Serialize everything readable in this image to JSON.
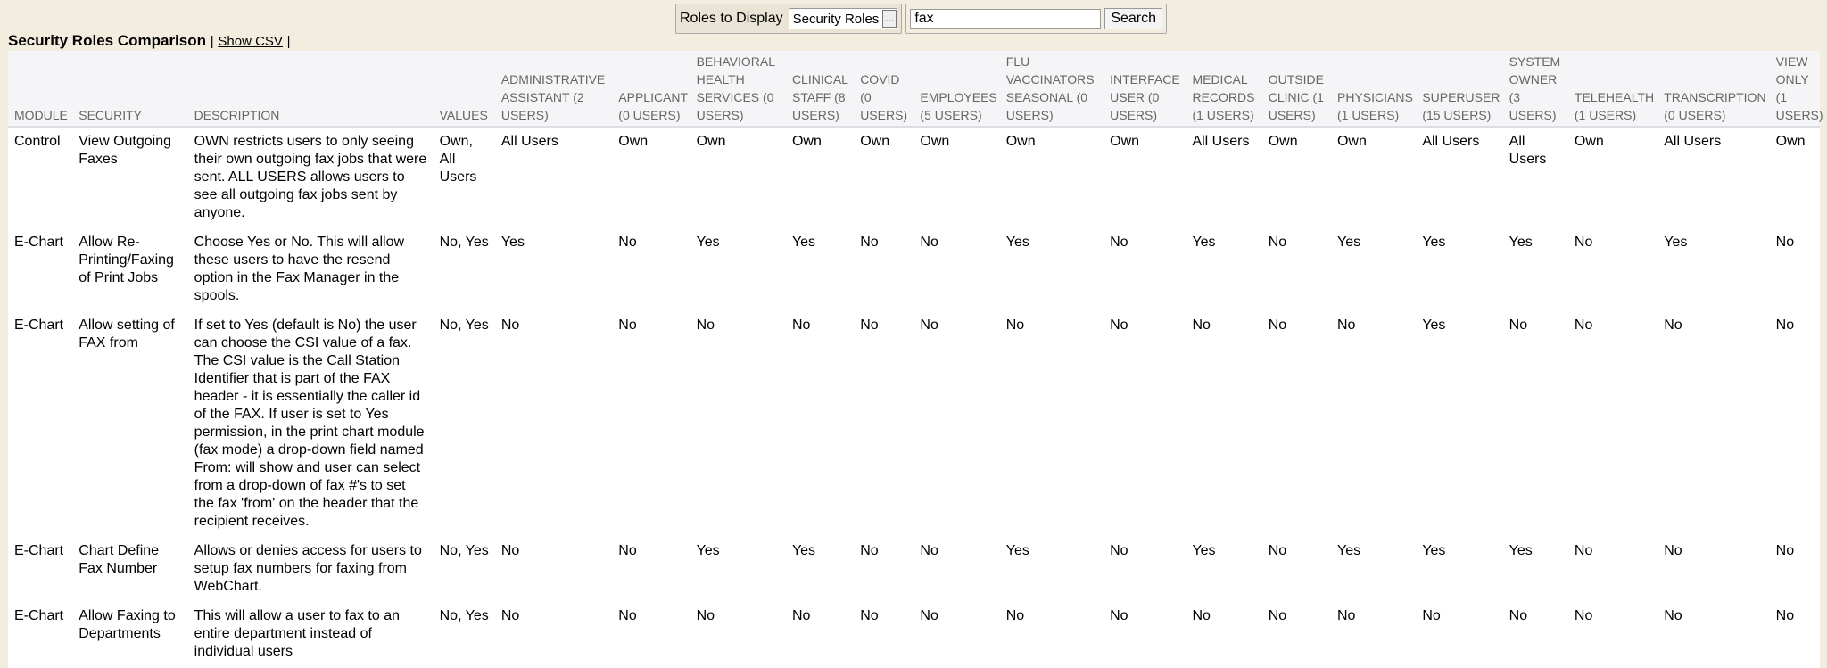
{
  "toolbar": {
    "roles_label": "Roles to Display",
    "roles_value": "Security Roles",
    "roles_more": "...",
    "search_value": "fax",
    "search_button": "Search"
  },
  "page": {
    "title": "Security Roles Comparison",
    "sep1": "|",
    "show_csv": "Show CSV",
    "sep2": "|"
  },
  "columns": [
    "MODULE",
    "SECURITY",
    "DESCRIPTION",
    "VALUES",
    "ADMINISTRATIVE ASSISTANT (2 USERS)",
    "APPLICANT (0 USERS)",
    "BEHAVIORAL HEALTH SERVICES (0 USERS)",
    "CLINICAL STAFF (8 USERS)",
    "COVID (0 USERS)",
    "EMPLOYEES (5 USERS)",
    "FLU VACCINATORS SEASONAL (0 USERS)",
    "INTERFACE USER (0 USERS)",
    "MEDICAL RECORDS (1 USERS)",
    "OUTSIDE CLINIC (1 USERS)",
    "PHYSICIANS (1 USERS)",
    "SUPERUSER (15 USERS)",
    "SYSTEM OWNER (3 USERS)",
    "TELEHEALTH (1 USERS)",
    "TRANSCRIPTION (0 USERS)",
    "VIEW ONLY (1 USERS)"
  ],
  "rows": [
    [
      "Control",
      "View Outgoing Faxes",
      "OWN restricts users to only seeing their own outgoing fax jobs that were sent. ALL USERS allows users to see all outgoing fax jobs sent by anyone.",
      "Own, All Users",
      "All Users",
      "Own",
      "Own",
      "Own",
      "Own",
      "Own",
      "Own",
      "Own",
      "All Users",
      "Own",
      "Own",
      "All Users",
      "All Users",
      "Own",
      "All Users",
      "Own"
    ],
    [
      "E-Chart",
      "Allow Re-Printing/Faxing of Print Jobs",
      "Choose Yes or No. This will allow these users to have the resend option in the Fax Manager in the spools.",
      "No, Yes",
      "Yes",
      "No",
      "Yes",
      "Yes",
      "No",
      "No",
      "Yes",
      "No",
      "Yes",
      "No",
      "Yes",
      "Yes",
      "Yes",
      "No",
      "Yes",
      "No"
    ],
    [
      "E-Chart",
      "Allow setting of FAX from",
      "If set to Yes (default is No) the user can choose the CSI value of a fax. The CSI value is the Call Station Identifier that is part of the FAX header - it is essentially the caller id of the FAX. If user is set to Yes permission, in the print chart module (fax mode) a drop-down field named From: will show and user can select from a drop-down of fax #'s to set the fax 'from' on the header that the recipient receives.",
      "No, Yes",
      "No",
      "No",
      "No",
      "No",
      "No",
      "No",
      "No",
      "No",
      "No",
      "No",
      "No",
      "Yes",
      "No",
      "No",
      "No",
      "No"
    ],
    [
      "E-Chart",
      "Chart Define Fax Number",
      "Allows or denies access for users to setup fax numbers for faxing from WebChart.",
      "No, Yes",
      "No",
      "No",
      "Yes",
      "Yes",
      "No",
      "No",
      "Yes",
      "No",
      "Yes",
      "No",
      "Yes",
      "Yes",
      "Yes",
      "No",
      "No",
      "No"
    ],
    [
      "E-Chart",
      "Allow Faxing to Departments",
      "This will allow a user to fax to an entire department instead of individual users",
      "No, Yes",
      "No",
      "No",
      "No",
      "No",
      "No",
      "No",
      "No",
      "No",
      "No",
      "No",
      "No",
      "No",
      "No",
      "No",
      "No",
      "No"
    ]
  ]
}
